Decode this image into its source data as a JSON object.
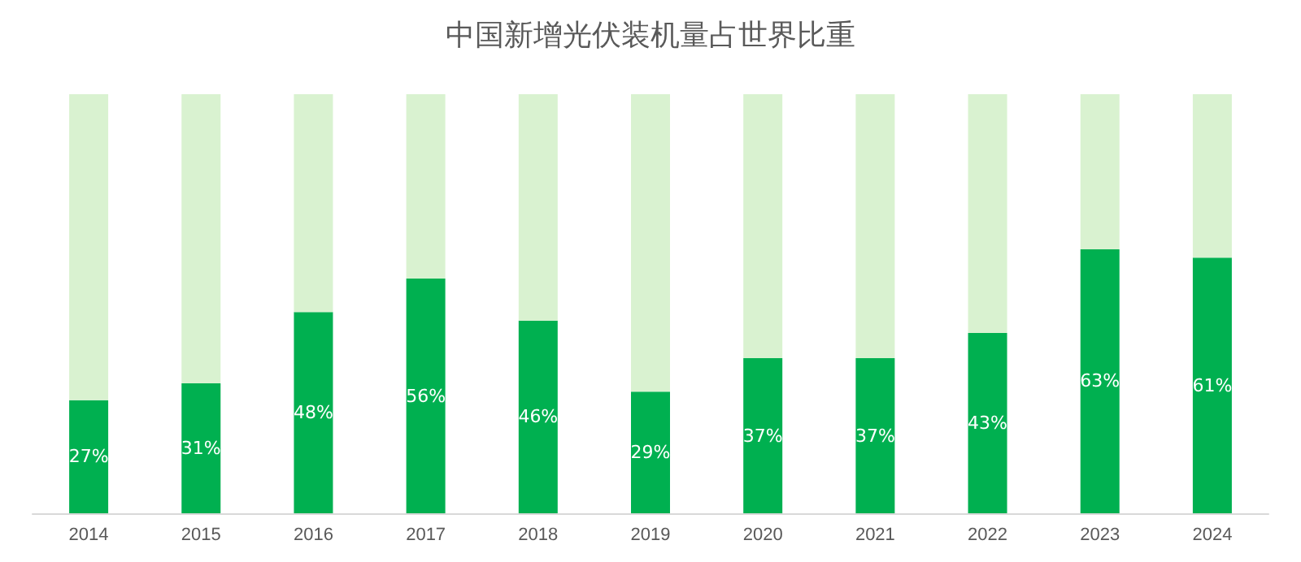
{
  "chart_data": {
    "type": "bar",
    "title": "中国新增光伏装机量占世界比重",
    "categories": [
      "2014",
      "2015",
      "2016",
      "2017",
      "2018",
      "2019",
      "2020",
      "2021",
      "2022",
      "2023",
      "2024"
    ],
    "stacked": true,
    "series": [
      {
        "color": "#00b050",
        "values": [
          27,
          31,
          48,
          56,
          46,
          29,
          37,
          37,
          43,
          63,
          61
        ],
        "value_labels": [
          "27%",
          "31%",
          "48%",
          "56%",
          "46%",
          "29%",
          "37%",
          "37%",
          "43%",
          "63%",
          "61%"
        ]
      },
      {
        "color": "#d9f2d0",
        "values": [
          73,
          69,
          52,
          44,
          54,
          71,
          63,
          63,
          57,
          37,
          39
        ]
      }
    ]
  }
}
